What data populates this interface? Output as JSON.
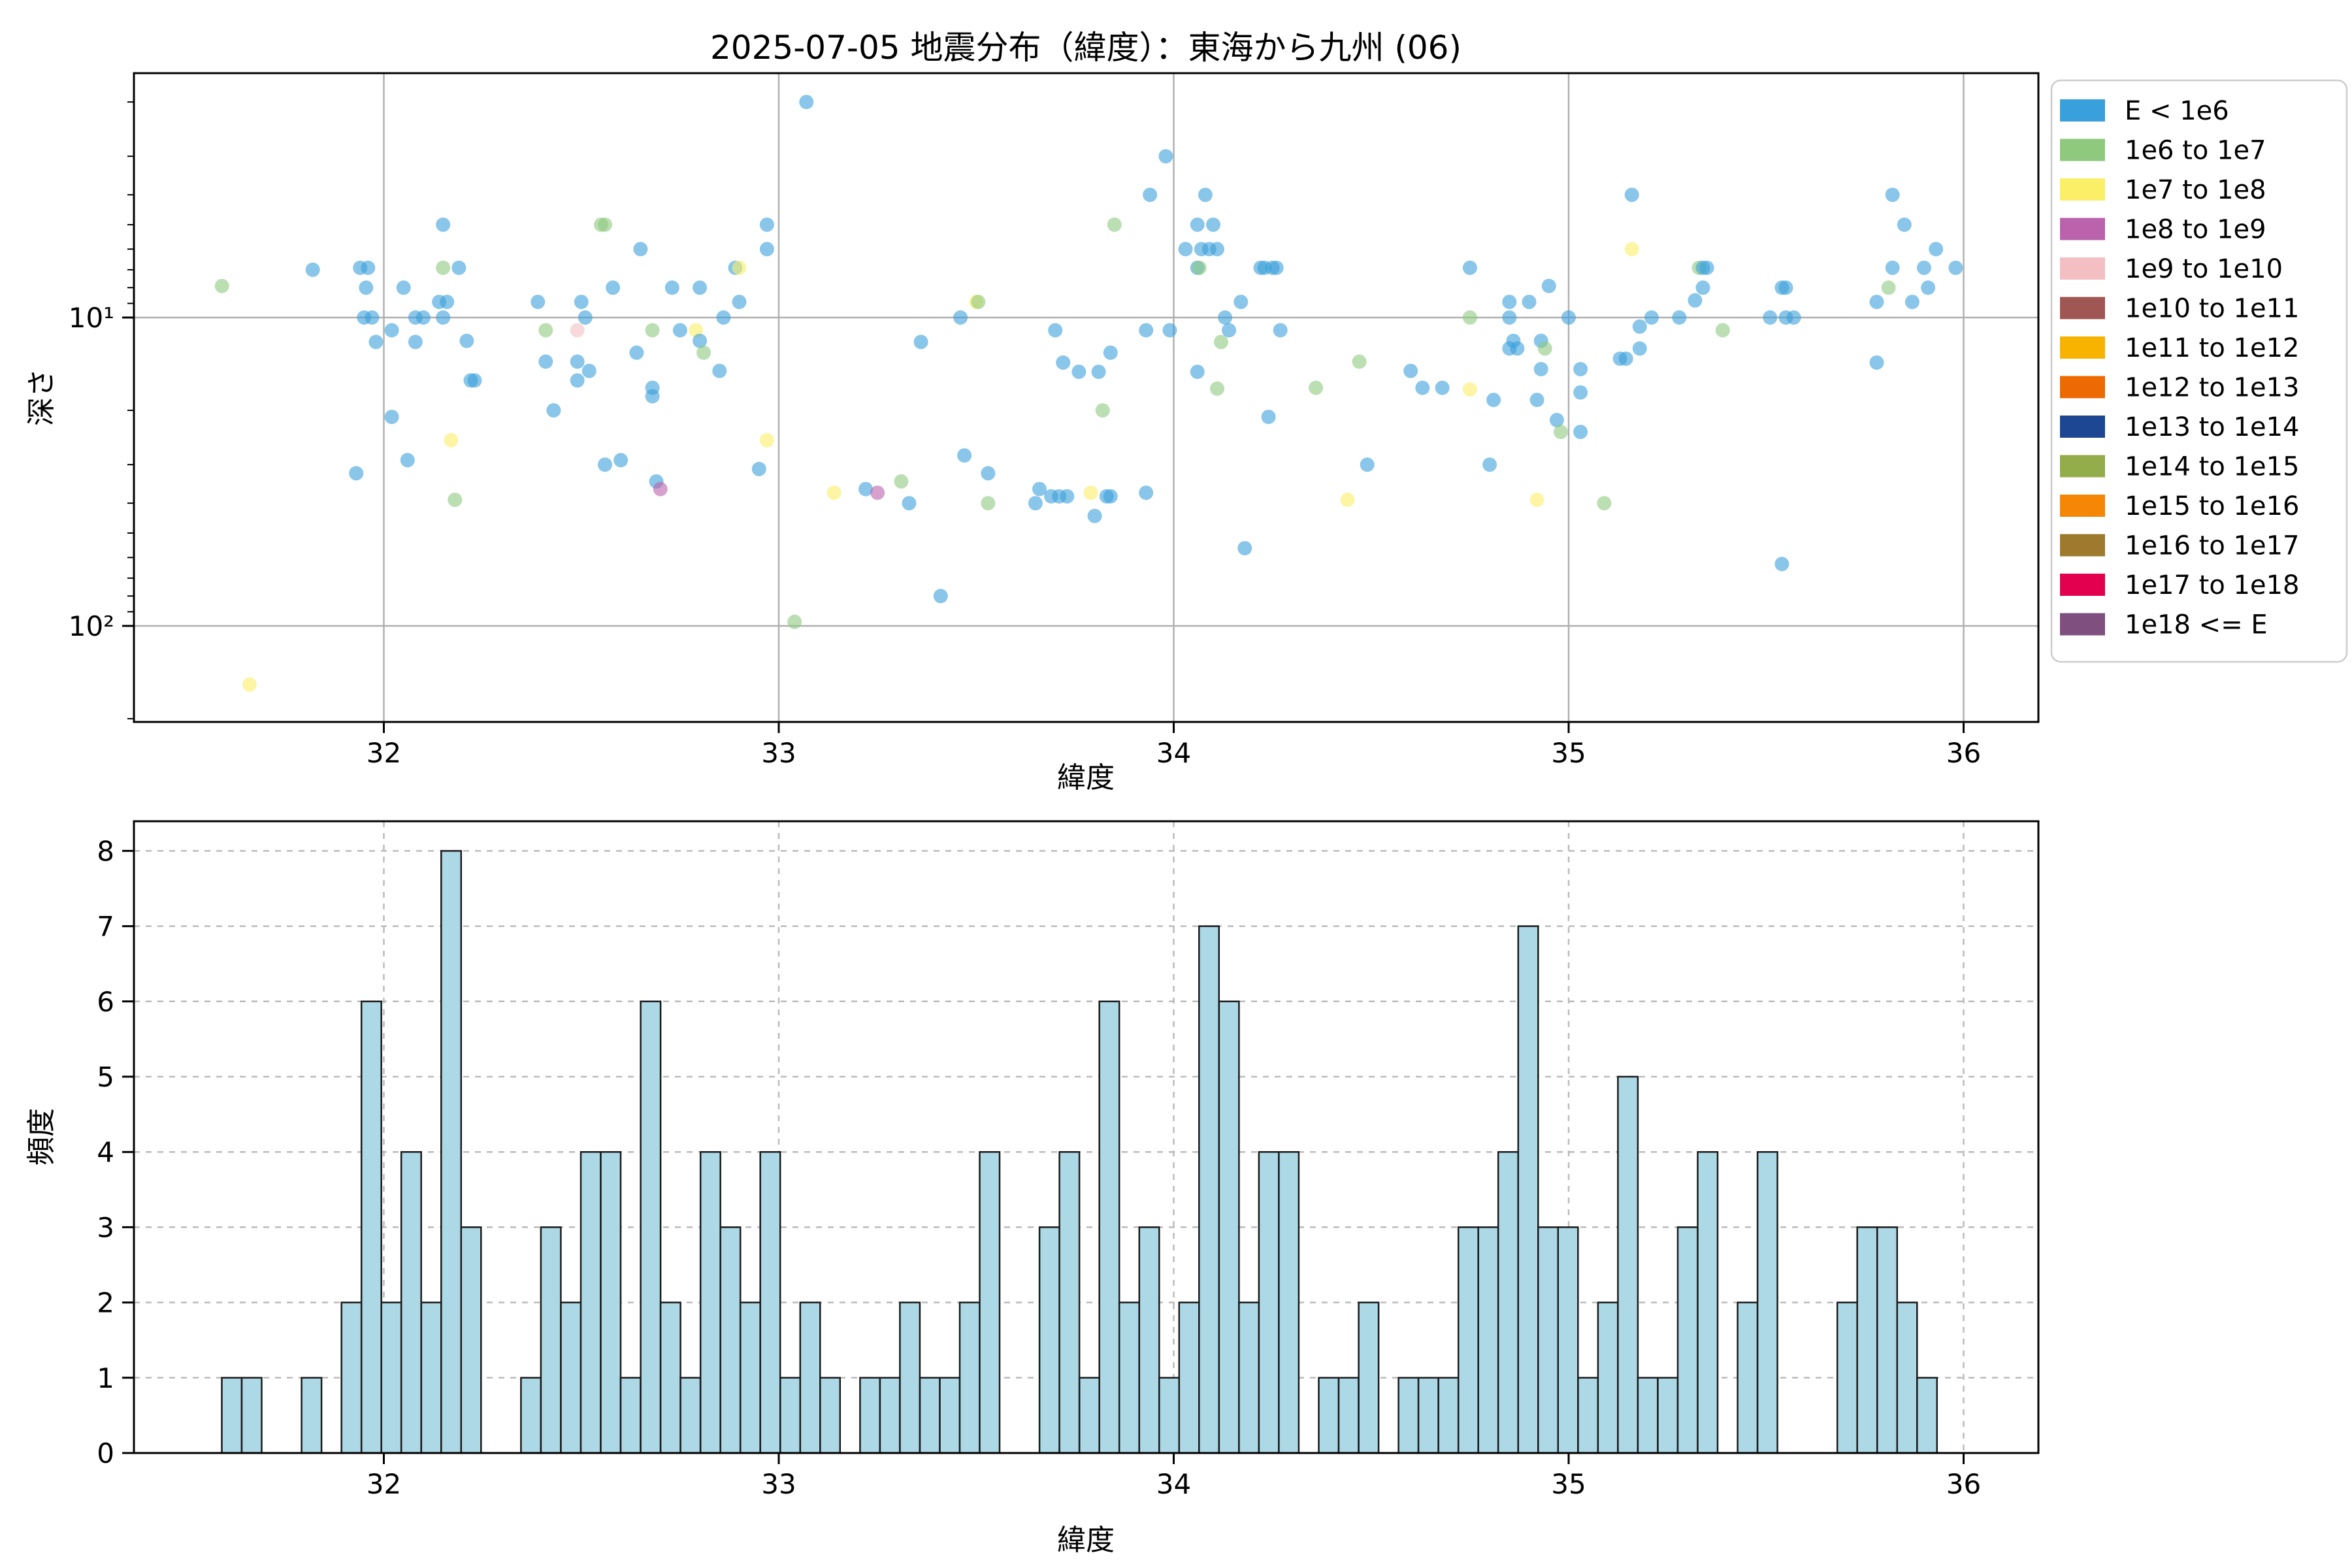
{
  "figure": {
    "background": "#ffffff"
  },
  "chart_data": [
    {
      "type": "scatter",
      "title": "2025-07-05 地震分布（緯度）：東海から九州 (06)",
      "xlabel": "緯度",
      "ylabel": "深さ",
      "xlim": [
        31.37,
        36.19
      ],
      "xticks": [
        32,
        33,
        34,
        35,
        36
      ],
      "yscale": "log-inverted",
      "ylim_depth": [
        1.6,
        202
      ],
      "yticks": [
        {
          "v": 10,
          "label": "10¹"
        },
        {
          "v": 100,
          "label": "10²"
        }
      ],
      "yminor_ticks": [
        2,
        3,
        4,
        5,
        6,
        7,
        8,
        9,
        20,
        30,
        40,
        50,
        60,
        70,
        80,
        90,
        200
      ],
      "grid": true,
      "marker_opacity": 0.6,
      "legend": {
        "entries": [
          {
            "label": "E < 1e6",
            "color": "#3AA0DB"
          },
          {
            "label": "1e6 to 1e7",
            "color": "#8EC97E"
          },
          {
            "label": "1e7 to 1e8",
            "color": "#FBEF68"
          },
          {
            "label": "1e8 to 1e9",
            "color": "#BA62AC"
          },
          {
            "label": "1e9 to 1e10",
            "color": "#F3BFC2"
          },
          {
            "label": "1e10 to 1e11",
            "color": "#A05653"
          },
          {
            "label": "1e11 to 1e12",
            "color": "#F8B300"
          },
          {
            "label": "1e12 to 1e13",
            "color": "#ED6A02"
          },
          {
            "label": "1e13 to 1e14",
            "color": "#1D4693"
          },
          {
            "label": "1e14 to 1e15",
            "color": "#94AD4B"
          },
          {
            "label": "1e15 to 1e16",
            "color": "#F58606"
          },
          {
            "label": "1e16 to 1e17",
            "color": "#9D7A2D"
          },
          {
            "label": "1e17 to 1e18",
            "color": "#E3004F"
          },
          {
            "label": "1e18 <= E",
            "color": "#7F4F80"
          }
        ]
      },
      "points_format": [
        "latitude",
        "depth_km",
        "color_index"
      ],
      "points": [
        [
          31.59,
          7.9,
          1
        ],
        [
          31.66,
          155,
          2
        ],
        [
          31.82,
          7.0,
          0
        ],
        [
          31.93,
          32,
          0
        ],
        [
          31.94,
          6.9,
          0
        ],
        [
          31.96,
          6.9,
          0
        ],
        [
          31.955,
          8.0,
          0
        ],
        [
          31.95,
          10,
          0
        ],
        [
          31.97,
          10,
          0
        ],
        [
          31.98,
          12,
          0
        ],
        [
          32.02,
          11,
          0
        ],
        [
          32.02,
          21,
          0
        ],
        [
          32.05,
          8.0,
          0
        ],
        [
          32.06,
          29,
          0
        ],
        [
          32.08,
          10,
          0
        ],
        [
          32.1,
          10,
          0
        ],
        [
          32.08,
          12,
          0
        ],
        [
          32.14,
          8.9,
          0
        ],
        [
          32.16,
          8.9,
          0
        ],
        [
          32.15,
          5.0,
          0
        ],
        [
          32.15,
          6.9,
          1
        ],
        [
          32.19,
          6.9,
          0
        ],
        [
          32.15,
          10,
          0
        ],
        [
          32.17,
          25,
          2
        ],
        [
          32.18,
          39,
          1
        ],
        [
          32.21,
          11.9,
          0
        ],
        [
          32.22,
          16,
          0
        ],
        [
          32.23,
          16,
          0
        ],
        [
          33.07,
          2.0,
          0
        ],
        [
          32.55,
          5.0,
          1
        ],
        [
          32.56,
          5.0,
          1
        ],
        [
          32.65,
          6.0,
          0
        ],
        [
          32.58,
          8.0,
          0
        ],
        [
          32.73,
          8.0,
          0
        ],
        [
          32.8,
          8.0,
          0
        ],
        [
          32.89,
          6.9,
          0
        ],
        [
          32.9,
          6.9,
          2
        ],
        [
          32.39,
          8.9,
          0
        ],
        [
          32.5,
          8.9,
          0
        ],
        [
          32.51,
          10,
          0
        ],
        [
          32.9,
          8.9,
          0
        ],
        [
          32.86,
          10,
          0
        ],
        [
          32.97,
          5.0,
          0
        ],
        [
          32.97,
          6.0,
          0
        ],
        [
          32.41,
          11,
          1
        ],
        [
          32.49,
          11,
          4
        ],
        [
          32.68,
          11,
          1
        ],
        [
          32.75,
          11,
          0
        ],
        [
          32.79,
          11,
          2
        ],
        [
          32.8,
          11.9,
          0
        ],
        [
          32.81,
          13,
          1
        ],
        [
          32.64,
          13,
          0
        ],
        [
          32.41,
          13.9,
          0
        ],
        [
          32.49,
          13.9,
          0
        ],
        [
          32.52,
          14.9,
          0
        ],
        [
          32.49,
          16,
          0
        ],
        [
          32.85,
          14.9,
          0
        ],
        [
          32.68,
          16.9,
          0
        ],
        [
          32.68,
          18,
          0
        ],
        [
          32.43,
          20,
          0
        ],
        [
          32.56,
          30,
          0
        ],
        [
          32.6,
          29,
          0
        ],
        [
          32.97,
          25,
          2
        ],
        [
          32.95,
          31,
          0
        ],
        [
          32.69,
          34,
          0
        ],
        [
          32.7,
          36,
          3
        ],
        [
          33.14,
          37,
          2
        ],
        [
          33.22,
          36,
          0
        ],
        [
          33.25,
          37,
          3
        ],
        [
          33.31,
          34,
          1
        ],
        [
          33.33,
          40,
          0
        ],
        [
          33.04,
          97,
          1
        ],
        [
          33.98,
          3.0,
          0
        ],
        [
          33.94,
          4.0,
          0
        ],
        [
          34.08,
          4.0,
          0
        ],
        [
          33.85,
          5.0,
          1
        ],
        [
          34.06,
          5.0,
          0
        ],
        [
          34.1,
          5.0,
          0
        ],
        [
          34.03,
          6.0,
          0
        ],
        [
          34.07,
          6.0,
          0
        ],
        [
          34.09,
          6.0,
          0
        ],
        [
          34.11,
          6.0,
          0
        ],
        [
          34.06,
          6.9,
          0
        ],
        [
          34.065,
          6.9,
          1
        ],
        [
          34.22,
          6.9,
          0
        ],
        [
          34.23,
          6.9,
          0
        ],
        [
          34.25,
          6.9,
          0
        ],
        [
          34.26,
          6.9,
          0
        ],
        [
          33.5,
          8.9,
          2
        ],
        [
          33.505,
          8.9,
          1
        ],
        [
          33.46,
          10,
          0
        ],
        [
          34.17,
          8.9,
          0
        ],
        [
          34.13,
          10,
          0
        ],
        [
          34.14,
          11,
          0
        ],
        [
          34.27,
          11,
          0
        ],
        [
          33.36,
          12,
          0
        ],
        [
          33.7,
          11,
          0
        ],
        [
          33.93,
          11,
          0
        ],
        [
          33.99,
          11,
          0
        ],
        [
          33.84,
          13,
          0
        ],
        [
          33.72,
          14,
          0
        ],
        [
          33.76,
          15,
          0
        ],
        [
          33.81,
          15,
          0
        ],
        [
          34.12,
          12,
          1
        ],
        [
          34.06,
          15,
          0
        ],
        [
          34.11,
          17,
          1
        ],
        [
          33.82,
          20,
          1
        ],
        [
          34.24,
          21,
          0
        ],
        [
          33.47,
          28,
          0
        ],
        [
          33.53,
          32,
          0
        ],
        [
          33.53,
          40,
          1
        ],
        [
          33.66,
          36,
          0
        ],
        [
          33.65,
          40,
          0
        ],
        [
          33.69,
          38,
          0
        ],
        [
          33.71,
          38,
          0
        ],
        [
          33.73,
          38,
          0
        ],
        [
          33.79,
          37,
          2
        ],
        [
          33.83,
          38,
          0
        ],
        [
          33.84,
          38,
          0
        ],
        [
          33.8,
          44,
          0
        ],
        [
          33.93,
          37,
          0
        ],
        [
          34.18,
          56,
          0
        ],
        [
          33.41,
          80,
          0
        ],
        [
          34.75,
          6.9,
          0
        ],
        [
          34.95,
          7.9,
          0
        ],
        [
          34.85,
          8.9,
          0
        ],
        [
          34.9,
          8.9,
          0
        ],
        [
          34.75,
          10,
          1
        ],
        [
          34.85,
          10,
          0
        ],
        [
          35.0,
          10,
          0
        ],
        [
          34.86,
          11.9,
          0
        ],
        [
          34.85,
          12.6,
          0
        ],
        [
          34.87,
          12.6,
          0
        ],
        [
          34.93,
          11.9,
          0
        ],
        [
          34.94,
          12.6,
          1
        ],
        [
          34.93,
          14.7,
          0
        ],
        [
          34.47,
          13.9,
          1
        ],
        [
          34.36,
          16.9,
          1
        ],
        [
          34.6,
          14.9,
          0
        ],
        [
          34.63,
          16.9,
          0
        ],
        [
          34.68,
          16.9,
          0
        ],
        [
          34.75,
          17.1,
          2
        ],
        [
          34.81,
          18.5,
          0
        ],
        [
          34.92,
          18.5,
          0
        ],
        [
          34.97,
          21.5,
          0
        ],
        [
          34.98,
          23.5,
          1
        ],
        [
          35.03,
          14.7,
          0
        ],
        [
          35.03,
          17.5,
          0
        ],
        [
          35.03,
          23.5,
          0
        ],
        [
          34.49,
          30,
          0
        ],
        [
          34.8,
          30,
          0
        ],
        [
          34.44,
          39,
          2
        ],
        [
          34.92,
          39,
          2
        ],
        [
          35.09,
          40,
          1
        ],
        [
          35.16,
          4.0,
          0
        ],
        [
          35.16,
          6.0,
          2
        ],
        [
          35.33,
          6.9,
          1
        ],
        [
          35.32,
          8.8,
          0
        ],
        [
          35.18,
          10.7,
          0
        ],
        [
          35.21,
          10,
          0
        ],
        [
          35.28,
          10,
          0
        ],
        [
          35.18,
          12.6,
          0
        ],
        [
          35.13,
          13.6,
          0
        ],
        [
          35.145,
          13.6,
          0
        ],
        [
          35.34,
          6.9,
          0
        ],
        [
          35.35,
          6.9,
          0
        ],
        [
          35.34,
          8.0,
          0
        ],
        [
          35.54,
          8.0,
          0
        ],
        [
          35.55,
          8.0,
          0
        ],
        [
          35.51,
          10,
          0
        ],
        [
          35.55,
          10,
          0
        ],
        [
          35.57,
          10,
          0
        ],
        [
          35.39,
          11,
          1
        ],
        [
          35.78,
          14,
          0
        ],
        [
          35.82,
          4.0,
          0
        ],
        [
          35.85,
          5.0,
          0
        ],
        [
          35.93,
          6.0,
          0
        ],
        [
          35.82,
          6.9,
          0
        ],
        [
          35.9,
          6.9,
          0
        ],
        [
          35.98,
          6.9,
          0
        ],
        [
          35.81,
          8.0,
          1
        ],
        [
          35.91,
          8.0,
          0
        ],
        [
          35.78,
          8.9,
          0
        ],
        [
          35.87,
          8.9,
          0
        ],
        [
          35.54,
          63,
          0
        ]
      ]
    },
    {
      "type": "bar",
      "xlabel": "緯度",
      "ylabel": "頻度",
      "xlim": [
        31.37,
        36.19
      ],
      "xticks": [
        32,
        33,
        34,
        35,
        36
      ],
      "ylim": [
        0,
        8.4
      ],
      "yticks": [
        0,
        1,
        2,
        3,
        4,
        5,
        6,
        7,
        8
      ],
      "grid": "dashed",
      "bar_color": "#ADD8E6",
      "bar_edge_color": "#1a1a1a",
      "bin_center_start": 31.615,
      "bin_width": 0.0505,
      "heights": [
        1,
        1,
        0,
        0,
        1,
        0,
        2,
        6,
        2,
        4,
        2,
        8,
        3,
        0,
        0,
        1,
        3,
        2,
        4,
        4,
        1,
        6,
        2,
        1,
        4,
        3,
        2,
        4,
        1,
        2,
        1,
        0,
        1,
        1,
        2,
        1,
        1,
        2,
        4,
        0,
        0,
        3,
        4,
        1,
        6,
        2,
        3,
        1,
        2,
        7,
        6,
        2,
        4,
        4,
        0,
        1,
        1,
        2,
        0,
        1,
        1,
        1,
        3,
        3,
        4,
        7,
        3,
        3,
        1,
        2,
        5,
        1,
        1,
        3,
        4,
        0,
        2,
        4,
        0,
        0,
        0,
        2,
        3,
        3,
        2,
        1
      ]
    }
  ]
}
